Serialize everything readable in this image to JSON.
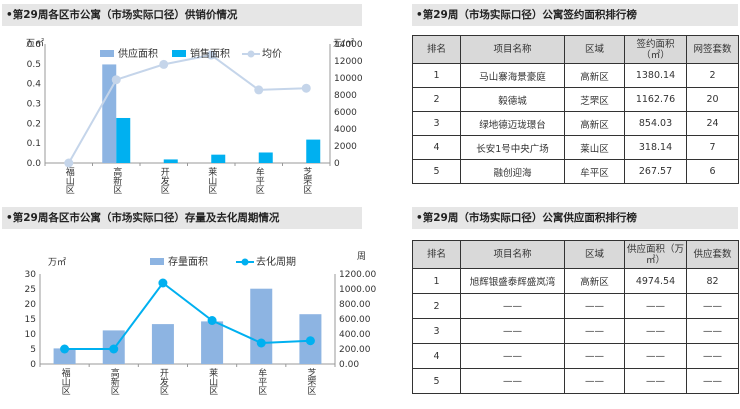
{
  "top_left": {
    "title": "•第29周各区市公寓（市场实际口径）供销价情况",
    "left_unit": "万㎡",
    "right_unit": "元/㎡"
  },
  "bottom_left": {
    "title": "•第29周各区市公寓（市场实际口径）存量及去化周期情况",
    "left_unit": "万㎡",
    "right_unit": "周"
  },
  "sign_table": {
    "title": "•第29周（市场实际口径）公寓签约面积排行榜",
    "headers": [
      "排名",
      "项目名称",
      "区域",
      "签约面积（㎡）",
      "网签套数"
    ],
    "rows": [
      [
        "1",
        "马山寨海景豪庭",
        "高新区",
        "1380.14",
        "2"
      ],
      [
        "2",
        "毅德城",
        "芝罘区",
        "1162.76",
        "20"
      ],
      [
        "3",
        "绿地德迈珑璟台",
        "高新区",
        "854.03",
        "24"
      ],
      [
        "4",
        "长安1号中央广场",
        "莱山区",
        "318.14",
        "7"
      ],
      [
        "5",
        "融创迎海",
        "牟平区",
        "267.57",
        "6"
      ]
    ]
  },
  "supply_table": {
    "title": "•第29周（市场实际口径）公寓供应面积排行榜",
    "headers": [
      "排名",
      "项目名称",
      "区域",
      "供应面积（万㎡）",
      "供应套数"
    ],
    "rows": [
      [
        "1",
        "旭辉银盛泰辉盛岚湾",
        "高新区",
        "4974.54",
        "82"
      ],
      [
        "2",
        "——",
        "——",
        "——",
        "——"
      ],
      [
        "3",
        "——",
        "——",
        "——",
        "——"
      ],
      [
        "4",
        "——",
        "——",
        "——",
        "——"
      ],
      [
        "5",
        "——",
        "——",
        "——",
        "——"
      ]
    ]
  },
  "chart_data": [
    {
      "type": "bar",
      "categories": [
        "福山区",
        "高新区",
        "开发区",
        "莱山区",
        "牟平区",
        "芝罘区"
      ],
      "series": [
        {
          "name": "供应面积",
          "kind": "bar",
          "axis": "left",
          "color": "#8db4e2",
          "values": [
            0,
            0.497,
            0,
            0,
            0,
            0
          ]
        },
        {
          "name": "销售面积",
          "kind": "bar",
          "axis": "left",
          "color": "#00b0f0",
          "values": [
            0,
            0.227,
            0.018,
            0.042,
            0.053,
            0.118
          ]
        },
        {
          "name": "均价",
          "kind": "line",
          "axis": "right",
          "color": "#c5d5ea",
          "values": [
            0,
            9800,
            11600,
            12700,
            8600,
            8800
          ]
        }
      ],
      "ylim_left": [
        0,
        0.6
      ],
      "yticks_left": [
        "0.0",
        "0.1",
        "0.2",
        "0.3",
        "0.4",
        "0.5",
        "0.6"
      ],
      "ylim_right": [
        0,
        14000
      ],
      "yticks_right": [
        "0",
        "2000",
        "4000",
        "6000",
        "8000",
        "10000",
        "12000",
        "14000"
      ],
      "legend_position": "top"
    },
    {
      "type": "bar",
      "categories": [
        "福山区",
        "高新区",
        "开发区",
        "莱山区",
        "牟平区",
        "芝罘区"
      ],
      "series": [
        {
          "name": "存量面积",
          "kind": "bar",
          "axis": "left",
          "color": "#8db4e2",
          "values": [
            5.2,
            11.2,
            13.3,
            14.2,
            25.1,
            16.6
          ]
        },
        {
          "name": "去化周期",
          "kind": "line",
          "axis": "right",
          "color": "#00b0f0",
          "values": [
            200,
            200,
            1080,
            580,
            280,
            310
          ]
        }
      ],
      "ylim_left": [
        0,
        30
      ],
      "yticks_left": [
        "0",
        "5",
        "10",
        "15",
        "20",
        "25",
        "30"
      ],
      "ylim_right": [
        0,
        1200
      ],
      "yticks_right": [
        "0.00",
        "200.00",
        "400.00",
        "600.00",
        "800.00",
        "1000.00",
        "1200.00"
      ],
      "legend_position": "top"
    }
  ]
}
